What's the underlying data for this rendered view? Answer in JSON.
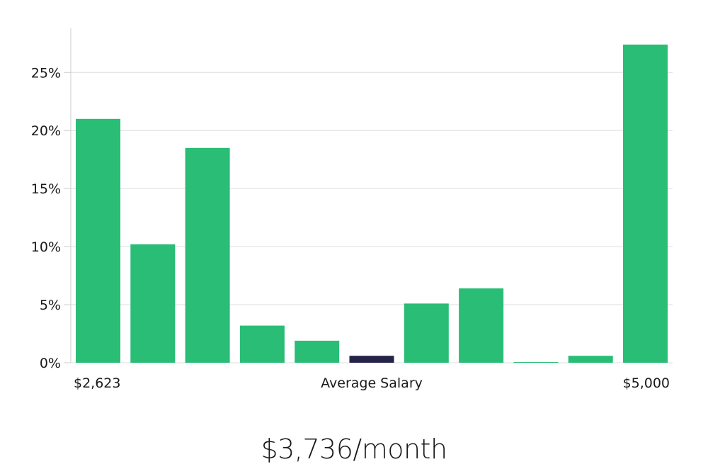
{
  "headline": "$3,736/month",
  "colors": {
    "bar": "#29bd76",
    "highlight": "#252347",
    "grid": "#dedede",
    "axis": "#cccccc",
    "text": "#1a1a1a"
  },
  "chart_data": {
    "type": "bar",
    "title": "",
    "xlabel": "Average Salary",
    "x_range_labels": [
      "$2,623",
      "$5,000"
    ],
    "ylabel": "",
    "ylim": [
      0,
      28.8
    ],
    "yticks": [
      0,
      5,
      10,
      15,
      20,
      25
    ],
    "ytick_labels": [
      "0%",
      "5%",
      "10%",
      "15%",
      "20%",
      "25%"
    ],
    "grid": true,
    "highlight_index": 5,
    "values": [
      21.0,
      10.2,
      18.5,
      3.2,
      1.9,
      0.6,
      5.1,
      6.4,
      0.05,
      0.6,
      27.4
    ]
  }
}
